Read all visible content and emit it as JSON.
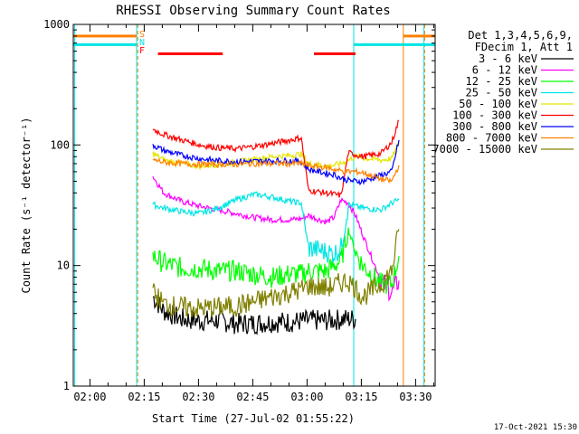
{
  "chart_data": {
    "type": "line",
    "title": "RHESSI Observing Summary Count Rates",
    "xlabel": "Start Time (27-Jul-02 01:55:22)",
    "ylabel": "Count Rate (s⁻¹ detector⁻¹)",
    "yscale": "log",
    "ylim": [
      1,
      1000
    ],
    "xlim_minutes": [
      0,
      100
    ],
    "x_ticks": [
      {
        "label": "02:00",
        "minute": 4.6
      },
      {
        "label": "02:15",
        "minute": 19.6
      },
      {
        "label": "02:30",
        "minute": 34.6
      },
      {
        "label": "02:45",
        "minute": 49.6
      },
      {
        "label": "03:00",
        "minute": 64.6
      },
      {
        "label": "03:15",
        "minute": 79.6
      },
      {
        "label": "03:30",
        "minute": 94.6
      }
    ],
    "y_ticks": [
      {
        "label": "1",
        "value": 1
      },
      {
        "label": "10",
        "value": 10
      },
      {
        "label": "100",
        "value": 100
      },
      {
        "label": "1000",
        "value": 1000
      }
    ],
    "legend_header": [
      "Det 1,3,4,5,6,9,",
      "FDecim 1, Att 1"
    ],
    "flags": [
      {
        "letter": "S",
        "color": "#ff8000",
        "level": 800
      },
      {
        "letter": "N",
        "color": "#00e5e5",
        "level": 680
      },
      {
        "letter": "F",
        "color": "#ff0000",
        "level": 570
      }
    ],
    "flag_intervals": {
      "S": [
        [
          0,
          17.5
        ],
        [
          91.2,
          100
        ]
      ],
      "N": [
        [
          0,
          17.5
        ],
        [
          77.5,
          100
        ]
      ],
      "F": [
        [
          23.4,
          41.3
        ],
        [
          66.5,
          78.0
        ]
      ]
    },
    "vertical_markers": [
      {
        "color": "#00e5e5",
        "minute": 0.4
      },
      {
        "color": "#00e5e5",
        "minute": 17.5
      },
      {
        "color": "#00e5e5",
        "minute": 77.5
      },
      {
        "color": "#00e5e5",
        "minute": 96.9
      },
      {
        "color": "#ff8000",
        "minute": 17.8
      },
      {
        "color": "#ff8000",
        "minute": 91.2
      },
      {
        "color": "#ff8000",
        "minute": 97.1
      }
    ],
    "series": [
      {
        "name": "3 - 6 keV",
        "color": "#000000",
        "x": [
          22,
          25,
          30,
          35,
          40,
          45,
          50,
          55,
          60,
          65,
          70,
          75,
          78
        ],
        "y": [
          5.5,
          4.2,
          3.6,
          3.5,
          3.5,
          3.3,
          3.3,
          3.4,
          3.4,
          3.5,
          3.5,
          3.6,
          3.6
        ]
      },
      {
        "name": "6 - 12 keV",
        "color": "#ff00ff",
        "x": [
          22,
          25,
          30,
          35,
          40,
          45,
          50,
          55,
          60,
          63,
          65,
          68,
          70,
          72,
          74,
          76,
          78,
          80,
          85,
          88,
          90
        ],
        "y": [
          55,
          40,
          34,
          31,
          29,
          27,
          25,
          24,
          24,
          24.5,
          26,
          24,
          23,
          25,
          35,
          33,
          26,
          18,
          7.5,
          6,
          7.5
        ]
      },
      {
        "name": "12 - 25 keV",
        "color": "#00ff00",
        "x": [
          22,
          25,
          30,
          35,
          40,
          45,
          50,
          55,
          60,
          63,
          65,
          70,
          72,
          74,
          76,
          78,
          80,
          85,
          88,
          90
        ],
        "y": [
          12,
          10.5,
          9.5,
          9.5,
          9,
          9,
          8.5,
          8,
          8.5,
          8.5,
          9,
          9,
          10,
          11,
          20,
          13,
          10,
          7,
          7,
          12
        ]
      },
      {
        "name": "25 - 50 keV",
        "color": "#00e5e5",
        "x": [
          22,
          25,
          30,
          35,
          40,
          45,
          50,
          55,
          60,
          63,
          65,
          70,
          72,
          74,
          76,
          78,
          80,
          85,
          88,
          90
        ],
        "y": [
          32,
          30,
          28,
          27,
          30,
          35,
          39,
          37,
          34,
          33,
          14,
          13,
          12.5,
          14,
          32,
          31,
          30,
          29,
          33,
          35
        ]
      },
      {
        "name": "50 - 100 keV",
        "color": "#e5e500",
        "x": [
          22,
          25,
          30,
          35,
          40,
          45,
          50,
          55,
          60,
          63,
          65,
          70,
          72,
          74,
          76,
          78,
          80,
          85,
          88,
          90
        ],
        "y": [
          85,
          75,
          70,
          67,
          69,
          72,
          76,
          80,
          82,
          84,
          70,
          67,
          68,
          70,
          75,
          80,
          78,
          75,
          77,
          105
        ]
      },
      {
        "name": "100 - 300 keV",
        "color": "#ff0000",
        "x": [
          22,
          25,
          30,
          35,
          40,
          45,
          50,
          55,
          60,
          63,
          65,
          70,
          72,
          74,
          76,
          78,
          80,
          85,
          88,
          90
        ],
        "y": [
          135,
          122,
          110,
          100,
          95,
          93,
          97,
          103,
          110,
          115,
          42,
          40,
          39,
          38,
          86,
          83,
          80,
          85,
          105,
          160
        ]
      },
      {
        "name": "300 - 800 keV",
        "color": "#0000ff",
        "x": [
          22,
          25,
          30,
          35,
          40,
          45,
          50,
          55,
          60,
          63,
          65,
          70,
          72,
          74,
          76,
          78,
          80,
          85,
          88,
          90
        ],
        "y": [
          100,
          90,
          82,
          77,
          74,
          73,
          73,
          74,
          74,
          73,
          63,
          58,
          57,
          53,
          51,
          50,
          50,
          56,
          60,
          110
        ]
      },
      {
        "name": "800 - 7000 keV",
        "color": "#ff8000",
        "x": [
          22,
          25,
          30,
          35,
          40,
          45,
          50,
          55,
          60,
          63,
          65,
          70,
          72,
          74,
          76,
          78,
          80,
          85,
          88,
          90
        ],
        "y": [
          75,
          72,
          70,
          69,
          69,
          69,
          70,
          70,
          70,
          70,
          67,
          65,
          63,
          61,
          60,
          60,
          59,
          52,
          50,
          68
        ]
      },
      {
        "name": "7000 - 15000 keV",
        "color": "#808000",
        "x": [
          22,
          25,
          30,
          35,
          40,
          45,
          50,
          55,
          60,
          63,
          65,
          70,
          72,
          74,
          76,
          78,
          80,
          85,
          88,
          90
        ],
        "y": [
          6,
          4.8,
          4.5,
          4.4,
          4.5,
          4.6,
          5,
          5.5,
          6,
          6.3,
          6.8,
          6.5,
          6.8,
          7.2,
          7.5,
          6.5,
          5.5,
          7,
          9,
          20
        ]
      }
    ]
  },
  "footer": {
    "timestamp": "17-Oct-2021 15:30"
  }
}
